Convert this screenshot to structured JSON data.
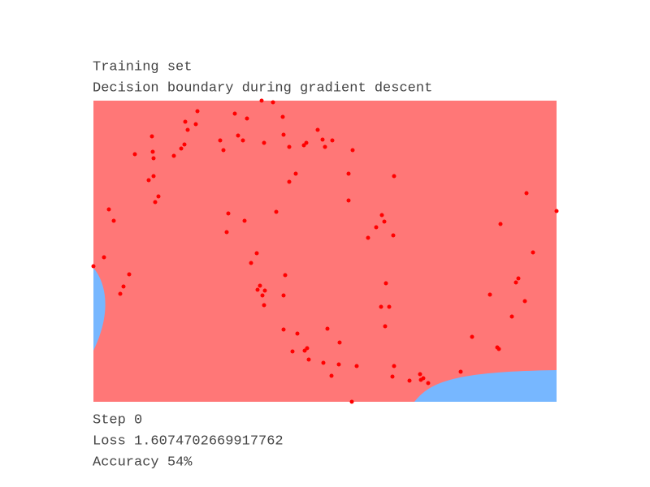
{
  "chart_data": {
    "type": "scatter",
    "title": "Training set",
    "subtitle": "Decision boundary during gradient descent",
    "annotations": [
      "Step 0",
      "Loss 1.6074702669917762",
      "Accuracy 54%"
    ],
    "color": "#ff0000",
    "background": "#ff7777",
    "region_color": "#77b7ff",
    "xlim": [
      0,
      570
    ],
    "ylim": [
      0,
      371
    ],
    "x": [
      0,
      13,
      19,
      25,
      33,
      37,
      44,
      51,
      68,
      72,
      73,
      74,
      74,
      76,
      80,
      99,
      108,
      112,
      113,
      116,
      126,
      128,
      156,
      160,
      164,
      166,
      174,
      178,
      184,
      186,
      189,
      194,
      201,
      202,
      205,
      208,
      210,
      211,
      207,
      221,
      210,
      225,
      233,
      234,
      236,
      234,
      234,
      241,
      241,
      245,
      249,
      251,
      260,
      259,
      262,
      263,
      265,
      276,
      282,
      283,
      285,
      288,
      293,
      294,
      302,
      303,
      314,
      314,
      319,
      318,
      324,
      338,
      348,
      355,
      358,
      354,
      359,
      360,
      364,
      369,
      370,
      368,
      370,
      389,
      402,
      403,
      406,
      412,
      452,
      466,
      488,
      497,
      499,
      501,
      515,
      520,
      523,
      531,
      533,
      541,
      570
    ],
    "y": [
      167,
      178,
      237,
      223,
      133,
      142,
      157,
      305,
      273,
      327,
      308,
      300,
      278,
      246,
      253,
      303,
      312,
      317,
      345,
      335,
      342,
      358,
      322,
      310,
      209,
      232,
      355,
      328,
      322,
      223,
      349,
      171,
      183,
      138,
      143,
      131,
      119,
      137,
      371,
      369,
      319,
      234,
      351,
      329,
      156,
      131,
      89,
      314,
      271,
      62,
      281,
      84,
      63,
      316,
      319,
      66,
      52,
      335,
      323,
      48,
      314,
      90,
      32,
      322,
      46,
      73,
      281,
      248,
      310,
      0,
      44,
      202,
      215,
      230,
      222,
      117,
      93,
      146,
      117,
      205,
      278,
      31,
      44,
      26,
      34,
      27,
      29,
      23,
      37,
      80,
      132,
      67,
      65,
      219,
      105,
      147,
      152,
      124,
      257,
      184,
      235
    ]
  }
}
